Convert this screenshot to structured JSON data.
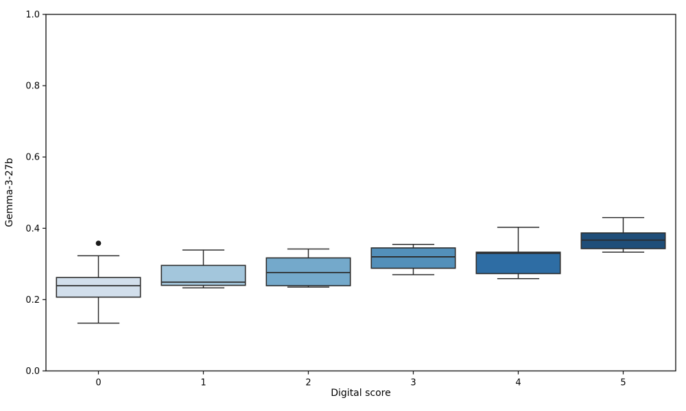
{
  "figure": {
    "background": "#ffffff",
    "xlabel": "Digital score",
    "ylabel": "Gemma-3-27b"
  },
  "chart_data": {
    "type": "box",
    "title": "",
    "xlabel": "Digital score",
    "ylabel": "Gemma-3-27b",
    "categories": [
      "0",
      "1",
      "2",
      "3",
      "4",
      "5"
    ],
    "ylim": [
      0.0,
      1.0
    ],
    "yticks": [
      0.0,
      0.2,
      0.4,
      0.6,
      0.8,
      1.0
    ],
    "ytick_labels": [
      "0.0",
      "0.2",
      "0.4",
      "0.6",
      "0.8",
      "1.0"
    ],
    "grid": false,
    "legend": "none",
    "palette_name": "Blues",
    "edge_color": "#2b2b2b",
    "spine_color": "#1a1a1a",
    "outlier_color": "#1a1a1a",
    "boxes": [
      {
        "category": "0",
        "whisker_low": 0.134,
        "q1": 0.207,
        "median": 0.239,
        "q3": 0.262,
        "whisker_high": 0.323,
        "outliers": [
          0.358
        ],
        "color": "#d2dfec"
      },
      {
        "category": "1",
        "whisker_low": 0.233,
        "q1": 0.24,
        "median": 0.249,
        "q3": 0.296,
        "whisker_high": 0.339,
        "outliers": [],
        "color": "#a3c6dc"
      },
      {
        "category": "2",
        "whisker_low": 0.235,
        "q1": 0.239,
        "median": 0.276,
        "q3": 0.317,
        "whisker_high": 0.342,
        "outliers": [],
        "color": "#74a9cb"
      },
      {
        "category": "3",
        "whisker_low": 0.27,
        "q1": 0.288,
        "median": 0.32,
        "q3": 0.345,
        "whisker_high": 0.355,
        "outliers": [],
        "color": "#5390ba"
      },
      {
        "category": "4",
        "whisker_low": 0.259,
        "q1": 0.273,
        "median": 0.33,
        "q3": 0.333,
        "whisker_high": 0.403,
        "outliers": [],
        "color": "#2e6da4"
      },
      {
        "category": "5",
        "whisker_low": 0.333,
        "q1": 0.343,
        "median": 0.367,
        "q3": 0.387,
        "whisker_high": 0.43,
        "outliers": [],
        "color": "#1f4e79"
      }
    ]
  }
}
